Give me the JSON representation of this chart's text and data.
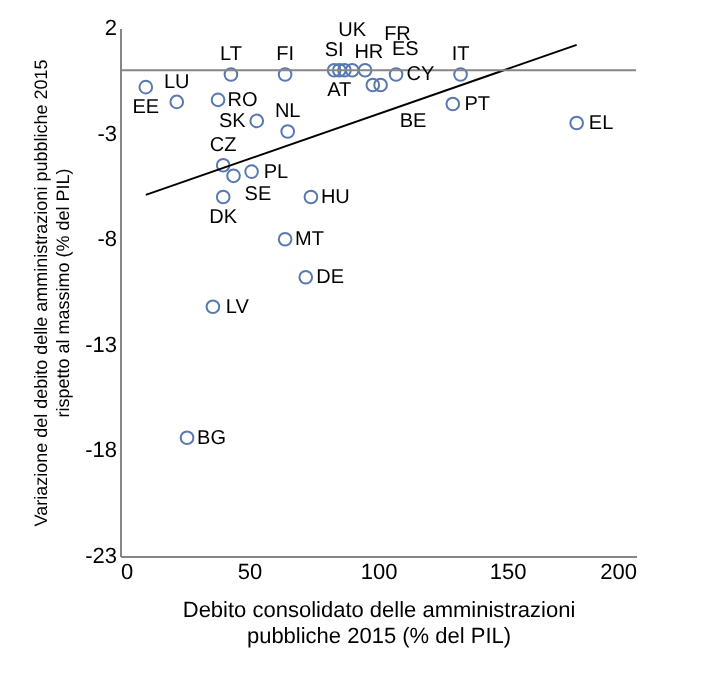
{
  "chart_data": {
    "type": "scatter",
    "xlabel": "Debito consolidato delle amministrazioni\npubbliche 2015 (% del PIL)",
    "ylabel": "Variazione del debito delle amministrazioni pubbliche 2015\nrispetto al massimo (% del PIL)",
    "series": [
      {
        "color": "#5879b0",
        "marker": "circle",
        "x": [
          10,
          22,
          38,
          43,
          64,
          53,
          65,
          40,
          44,
          51,
          40,
          74,
          64,
          72,
          36,
          26,
          83,
          85,
          87,
          90,
          95,
          98,
          101,
          107,
          132,
          129,
          177
        ],
        "values": [
          -0.8,
          -1.5,
          -1.4,
          -0.2,
          -0.2,
          -2.4,
          -2.9,
          -4.5,
          -5.0,
          -4.8,
          -6.0,
          -6.0,
          -8.0,
          -9.8,
          -11.2,
          -17.4,
          0,
          0,
          0,
          0,
          0,
          -0.7,
          -0.7,
          -0.2,
          -0.2,
          -1.6,
          -2.5
        ],
        "value_labels": [
          "EE",
          "LU",
          "RO",
          "LT",
          "FI",
          "SK",
          "NL",
          "CZ",
          "SE",
          "PL",
          "DK",
          "HU",
          "MT",
          "DE",
          "LV",
          "BG",
          "SI",
          "AT",
          "HR",
          "UK",
          "FR",
          "ES",
          "BE",
          "CY",
          "IT",
          "PT",
          "EL"
        ]
      },
      {
        "type": "line",
        "color": "#000000",
        "x": [
          10,
          177
        ],
        "values": [
          -5.9,
          1.2
        ]
      }
    ],
    "xlim": [
      0,
      200
    ],
    "xticks": [
      0,
      50,
      100,
      150,
      200
    ],
    "ylim": [
      -23,
      2
    ],
    "yticks": [
      2,
      -3,
      -8,
      -13,
      -18,
      -23
    ],
    "ref_lines": [
      {
        "axis": "y",
        "value": 0,
        "color": "#868686"
      }
    ],
    "grid": false
  }
}
